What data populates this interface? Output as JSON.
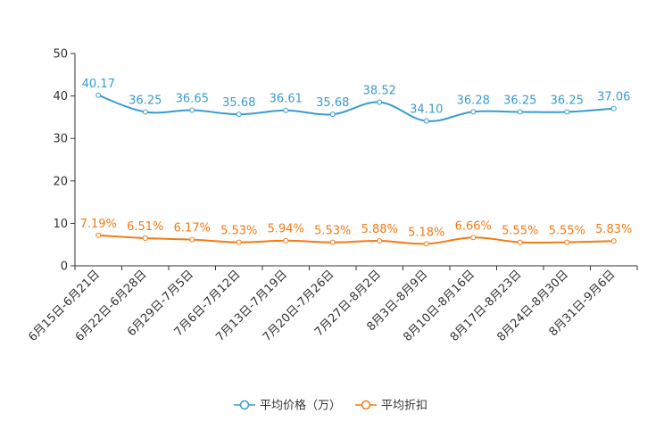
{
  "chart_data": {
    "type": "line",
    "categories": [
      "6月15日-6月21日",
      "6月22日-6月28日",
      "6月29日-7月5日",
      "7月6日-7月12日",
      "7月13日-7月19日",
      "7月20日-7月26日",
      "7月27日-8月2日",
      "8月3日-8月9日",
      "8月10日-8月16日",
      "8月17日-8月23日",
      "8月24日-8月30日",
      "8月31日-9月6日"
    ],
    "y_ticks": [
      "0",
      "10",
      "20",
      "30",
      "40",
      "50"
    ],
    "ylim": [
      0,
      50
    ],
    "series": [
      {
        "name": "平均价格（万）",
        "color": "#3a9bce",
        "values": [
          40.17,
          36.25,
          36.65,
          35.68,
          36.61,
          35.68,
          38.52,
          34.1,
          36.28,
          36.25,
          36.25,
          37.06
        ],
        "labels": [
          "40.17",
          "36.25",
          "36.65",
          "35.68",
          "36.61",
          "35.68",
          "38.52",
          "34.10",
          "36.28",
          "36.25",
          "36.25",
          "37.06"
        ]
      },
      {
        "name": "平均折扣",
        "color": "#f47a14",
        "values": [
          7.19,
          6.51,
          6.17,
          5.53,
          5.94,
          5.53,
          5.88,
          5.18,
          6.66,
          5.55,
          5.55,
          5.83
        ],
        "labels": [
          "7.19%",
          "6.51%",
          "6.17%",
          "5.53%",
          "5.94%",
          "5.53%",
          "5.88%",
          "5.18%",
          "6.66%",
          "5.55%",
          "5.55%",
          "5.83%"
        ]
      }
    ],
    "legend": {
      "position": "bottom-center"
    },
    "grid": false
  }
}
